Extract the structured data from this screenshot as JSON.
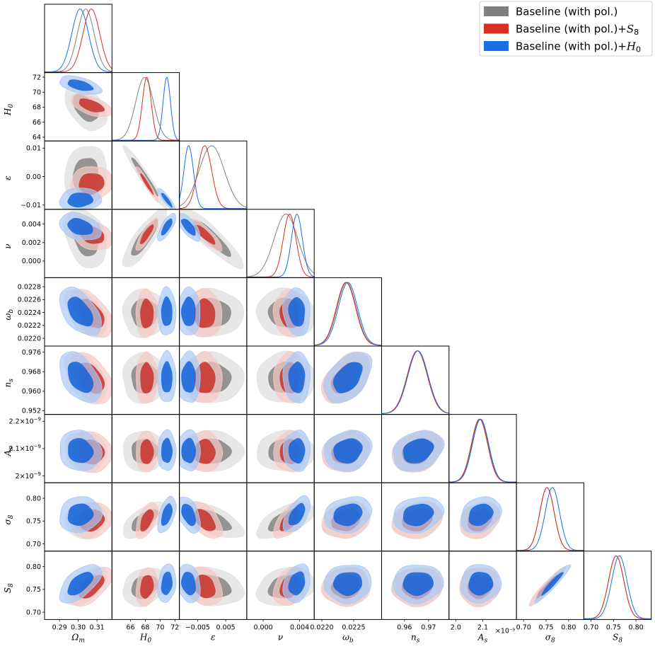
{
  "chart_data": {
    "type": "triangle-corner",
    "title": "",
    "legend": {
      "placement": "top-right",
      "entries": [
        {
          "name": "Baseline (with pol.)",
          "color": "#808080"
        },
        {
          "name": "Baseline (with pol.)+",
          "sym": "S",
          "sub": "8",
          "color": "#d92f20"
        },
        {
          "name": "Baseline (with pol.)+",
          "sym": "H",
          "sub": "0",
          "color": "#1a6ee6"
        }
      ]
    },
    "parameters": [
      {
        "key": "Om",
        "sym": "Ω",
        "sub": "m",
        "range": [
          0.282,
          0.318
        ],
        "ticks": [
          0.29,
          0.3,
          0.31
        ],
        "tick_labels": [
          "0.29",
          "0.30",
          "0.31"
        ],
        "means": [
          0.304,
          0.307,
          0.301
        ],
        "sds": [
          0.0045,
          0.0045,
          0.0045
        ]
      },
      {
        "key": "H0",
        "sym": "H",
        "sub": "0",
        "range": [
          63.5,
          72.6
        ],
        "ticks": [
          64,
          66,
          68,
          70,
          72
        ],
        "tick_labels": [
          "64",
          "66",
          "68",
          "70",
          "72"
        ],
        "xticks": [
          66,
          68,
          70,
          72
        ],
        "xtick_labels": [
          "66",
          "68",
          "70",
          "72"
        ],
        "means": [
          67.9,
          68.2,
          70.9
        ],
        "sds": [
          1.2,
          0.6,
          0.5
        ]
      },
      {
        "key": "eps",
        "sym": "ε",
        "sub": "",
        "range": [
          -0.0115,
          0.0125
        ],
        "ticks": [
          -0.01,
          0.0,
          0.01
        ],
        "tick_labels": [
          "−0.01",
          "0.00",
          "0.01"
        ],
        "xticks": [
          -0.005,
          0.005
        ],
        "xtick_labels": [
          "−0.005",
          "0.005"
        ],
        "means": [
          0.0,
          -0.0025,
          -0.0082
        ],
        "sds": [
          0.0045,
          0.0025,
          0.0017
        ]
      },
      {
        "key": "nu",
        "sym": "ν",
        "sub": "",
        "range": [
          -0.0018,
          0.0056
        ],
        "ticks": [
          0.0,
          0.002,
          0.004
        ],
        "tick_labels": [
          "0.000",
          "0.002",
          "0.004"
        ],
        "xticks": [
          0.0,
          0.004
        ],
        "xtick_labels": [
          "0.000",
          "0.004"
        ],
        "means": [
          0.0025,
          0.0029,
          0.0037
        ],
        "sds": [
          0.0013,
          0.0007,
          0.0006
        ]
      },
      {
        "key": "wb",
        "sym": "ω",
        "sub": "b",
        "range": [
          0.02188,
          0.02294
        ],
        "ticks": [
          0.022,
          0.0222,
          0.0224,
          0.0226,
          0.0228
        ],
        "tick_labels": [
          "0.0220",
          "0.0222",
          "0.0224",
          "0.0226",
          "0.0228"
        ],
        "xticks": [
          0.022,
          0.0225
        ],
        "xtick_labels": [
          "0.0220",
          "0.0225"
        ],
        "means": [
          0.02239,
          0.02238,
          0.02241
        ],
        "sds": [
          0.00015,
          0.00015,
          0.00015
        ]
      },
      {
        "key": "ns",
        "sym": "n",
        "sub": "s",
        "range": [
          0.9505,
          0.9785
        ],
        "ticks": [
          0.952,
          0.96,
          0.968,
          0.976
        ],
        "tick_labels": [
          "0.952",
          "0.960",
          "0.968",
          "0.976"
        ],
        "xticks": [
          0.96,
          0.97
        ],
        "xtick_labels": [
          "0.96",
          "0.97"
        ],
        "means": [
          0.9654,
          0.9653,
          0.9656
        ],
        "sds": [
          0.0042,
          0.0042,
          0.0042
        ]
      },
      {
        "key": "As",
        "sym": "A",
        "sub": "s",
        "range": [
          1.975e-09,
          2.225e-09
        ],
        "ticks": [
          2e-09,
          2.1e-09,
          2.2e-09
        ],
        "tick_labels": [
          "2×10",
          "2.1×10",
          "2.2×10"
        ],
        "tick_exp": "−9",
        "xticks": [
          2e-09,
          2.1e-09
        ],
        "xtick_labels": [
          "2.0",
          "2.1"
        ],
        "offset": "×10",
        "means": [
          2.09e-09,
          2.088e-09,
          2.092e-09
        ],
        "sds": [
          3e-11,
          3e-11,
          3e-11
        ]
      },
      {
        "key": "s8",
        "sym": "σ",
        "sub": "8",
        "range": [
          0.684,
          0.834
        ],
        "ticks": [
          0.7,
          0.75,
          0.8
        ],
        "tick_labels": [
          "0.70",
          "0.75",
          "0.80"
        ],
        "xticks": [
          0.7,
          0.75,
          0.8
        ],
        "xtick_labels": [
          "0.70",
          "0.75",
          "0.80"
        ],
        "means": [
          0.752,
          0.752,
          0.764
        ],
        "sds": [
          0.016,
          0.016,
          0.016
        ]
      },
      {
        "key": "S8",
        "sym": "S",
        "sub": "8",
        "range": [
          0.684,
          0.834
        ],
        "ticks": [
          0.7,
          0.75,
          0.8
        ],
        "tick_labels": [
          "0.70",
          "0.75",
          "0.80"
        ],
        "xticks": [
          0.7,
          0.75,
          0.8
        ],
        "xtick_labels": [
          "0.70",
          "0.75",
          "0.80"
        ],
        "means": [
          0.756,
          0.756,
          0.763
        ],
        "sds": [
          0.017,
          0.017,
          0.017
        ]
      }
    ],
    "correlations": [
      [
        [
          0,
          1,
          -0.45,
          -0.55,
          -0.5
        ],
        [
          0,
          2,
          0.1,
          0.1,
          0.1
        ],
        [
          0,
          3,
          -0.3,
          -0.35,
          -0.3
        ],
        [
          0,
          4,
          -0.5,
          -0.5,
          -0.5
        ],
        [
          0,
          5,
          -0.45,
          -0.45,
          -0.45
        ],
        [
          0,
          6,
          -0.1,
          -0.1,
          -0.1
        ],
        [
          0,
          7,
          0.1,
          0.1,
          0.1
        ],
        [
          0,
          8,
          0.6,
          0.6,
          0.6
        ],
        [
          1,
          2,
          -0.97,
          -0.96,
          -0.9
        ],
        [
          1,
          3,
          0.85,
          0.85,
          0.75
        ],
        [
          1,
          4,
          0.0,
          0.0,
          0.0
        ],
        [
          1,
          5,
          0.0,
          0.0,
          0.0
        ],
        [
          1,
          6,
          0.0,
          0.0,
          0.0
        ],
        [
          1,
          7,
          0.65,
          0.55,
          0.5
        ],
        [
          1,
          8,
          0.25,
          0.2,
          0.2
        ],
        [
          2,
          3,
          -0.9,
          -0.85,
          -0.7
        ],
        [
          2,
          4,
          0.0,
          0.0,
          0.0
        ],
        [
          2,
          5,
          0.0,
          0.0,
          0.0
        ],
        [
          2,
          6,
          0.0,
          0.0,
          0.0
        ],
        [
          2,
          7,
          -0.6,
          -0.5,
          -0.45
        ],
        [
          2,
          8,
          -0.2,
          -0.2,
          -0.2
        ],
        [
          3,
          4,
          -0.1,
          -0.1,
          -0.1
        ],
        [
          3,
          5,
          0.0,
          0.0,
          0.0
        ],
        [
          3,
          6,
          0.0,
          0.0,
          0.0
        ],
        [
          3,
          7,
          0.6,
          0.6,
          0.55
        ],
        [
          3,
          8,
          0.25,
          0.25,
          0.25
        ],
        [
          4,
          5,
          0.45,
          0.45,
          0.45
        ],
        [
          4,
          6,
          0.15,
          0.15,
          0.15
        ],
        [
          4,
          7,
          0.2,
          0.2,
          0.2
        ],
        [
          4,
          8,
          0.05,
          0.05,
          0.05
        ],
        [
          5,
          6,
          0.25,
          0.25,
          0.25
        ],
        [
          5,
          7,
          0.2,
          0.2,
          0.2
        ],
        [
          5,
          8,
          0.05,
          0.05,
          0.05
        ],
        [
          6,
          7,
          0.25,
          0.25,
          0.25
        ],
        [
          6,
          8,
          0.05,
          0.05,
          0.05
        ],
        [
          7,
          8,
          0.95,
          0.95,
          0.95
        ]
      ]
    ],
    "series_colors": {
      "line": [
        "#808080",
        "#d92f20",
        "#1a6ee6"
      ],
      "inner": [
        "#777777",
        "#c8302a",
        "#1261d8"
      ],
      "outer": [
        "#e3e3e3",
        "#f5c9c4",
        "#aac9f4"
      ]
    }
  }
}
